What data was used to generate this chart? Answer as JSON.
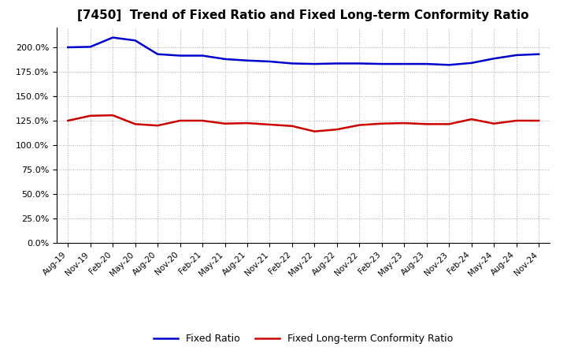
{
  "title": "[7450]  Trend of Fixed Ratio and Fixed Long-term Conformity Ratio",
  "x_labels": [
    "Aug-19",
    "Nov-19",
    "Feb-20",
    "May-20",
    "Aug-20",
    "Nov-20",
    "Feb-21",
    "May-21",
    "Aug-21",
    "Nov-21",
    "Feb-22",
    "May-22",
    "Aug-22",
    "Nov-22",
    "Feb-23",
    "May-23",
    "Aug-23",
    "Nov-23",
    "Feb-24",
    "May-24",
    "Aug-24",
    "Nov-24"
  ],
  "fixed_ratio": [
    200.0,
    200.5,
    210.0,
    207.0,
    193.0,
    191.5,
    191.5,
    188.0,
    186.5,
    185.5,
    183.5,
    183.0,
    183.5,
    183.5,
    183.0,
    183.0,
    183.0,
    182.0,
    184.0,
    188.5,
    192.0,
    193.0
  ],
  "fixed_lt_ratio": [
    125.0,
    130.0,
    130.5,
    121.5,
    120.0,
    125.0,
    125.0,
    122.0,
    122.5,
    121.0,
    119.5,
    114.0,
    116.0,
    120.5,
    122.0,
    122.5,
    121.5,
    121.5,
    126.5,
    122.0,
    125.0,
    125.0
  ],
  "fixed_ratio_color": "#0000cc",
  "fixed_lt_ratio_color": "#cc0000",
  "background_color": "#ffffff",
  "grid_color": "#aaaaaa",
  "ylim": [
    0,
    220
  ],
  "yticks": [
    0,
    25,
    50,
    75,
    100,
    125,
    150,
    175,
    200
  ],
  "legend_fixed_ratio": "Fixed Ratio",
  "legend_fixed_lt_ratio": "Fixed Long-term Conformity Ratio",
  "title_fontsize": 11
}
